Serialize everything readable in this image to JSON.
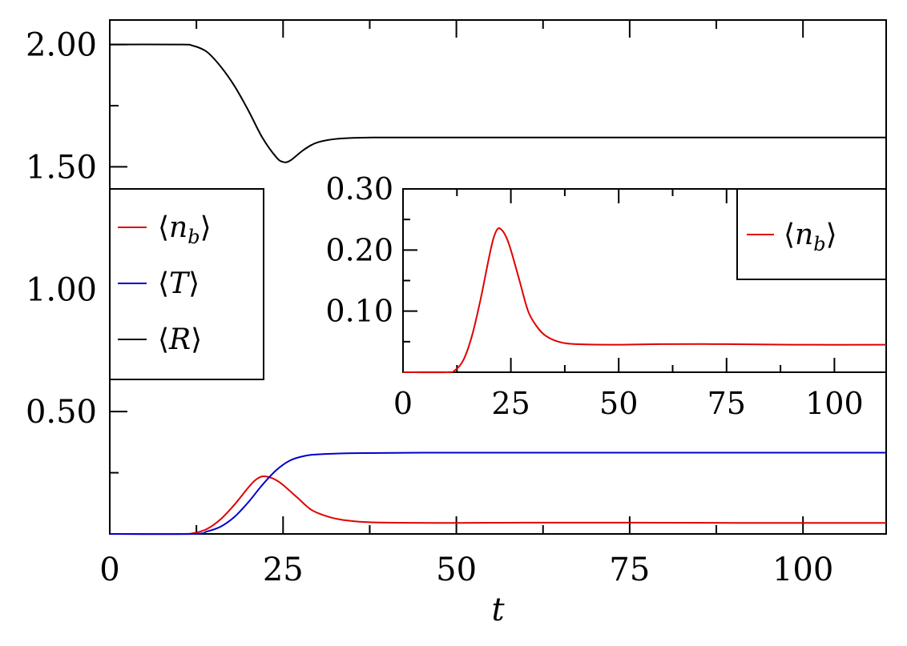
{
  "chart_data": [
    {
      "id": "main",
      "type": "line",
      "xlabel": "t",
      "ylabel": "",
      "xlim": [
        0,
        112
      ],
      "ylim": [
        0,
        2.1
      ],
      "xticks": [
        0,
        25,
        50,
        75,
        100
      ],
      "xtick_labels": [
        "0",
        "25",
        "50",
        "75",
        "100"
      ],
      "yticks": [
        0.5,
        1.0,
        1.5,
        2.0
      ],
      "ytick_labels": [
        "0.50",
        "1.00",
        "1.50",
        "2.00"
      ],
      "x_minor_step": 12.5,
      "y_minor_step": 0.25,
      "grid": false,
      "legend_position": "middle-left",
      "series": [
        {
          "legend": {
            "pre": "⟨",
            "var": "n",
            "sub": "b",
            "post": "⟩"
          },
          "color": "#e00000",
          "points": [
            [
              0,
              0
            ],
            [
              10,
              0
            ],
            [
              12,
              0.003
            ],
            [
              14,
              0.02
            ],
            [
              16,
              0.06
            ],
            [
              18,
              0.12
            ],
            [
              20,
              0.19
            ],
            [
              21,
              0.22
            ],
            [
              22,
              0.235
            ],
            [
              23,
              0.232
            ],
            [
              24,
              0.22
            ],
            [
              25,
              0.2
            ],
            [
              27,
              0.15
            ],
            [
              29,
              0.1
            ],
            [
              31,
              0.075
            ],
            [
              33,
              0.06
            ],
            [
              36,
              0.05
            ],
            [
              40,
              0.046
            ],
            [
              50,
              0.045
            ],
            [
              60,
              0.046
            ],
            [
              75,
              0.046
            ],
            [
              90,
              0.045
            ],
            [
              112,
              0.045
            ]
          ]
        },
        {
          "legend": {
            "pre": "⟨",
            "var": "T",
            "sub": "",
            "post": "⟩"
          },
          "color": "#0000cc",
          "points": [
            [
              0,
              0
            ],
            [
              12,
              0
            ],
            [
              14,
              0.01
            ],
            [
              16,
              0.03
            ],
            [
              18,
              0.07
            ],
            [
              20,
              0.13
            ],
            [
              22,
              0.2
            ],
            [
              24,
              0.26
            ],
            [
              26,
              0.3
            ],
            [
              28,
              0.318
            ],
            [
              30,
              0.325
            ],
            [
              35,
              0.33
            ],
            [
              45,
              0.332
            ],
            [
              60,
              0.332
            ],
            [
              80,
              0.332
            ],
            [
              112,
              0.332
            ]
          ]
        },
        {
          "legend": {
            "pre": "⟨",
            "var": "R",
            "sub": "",
            "post": "⟩"
          },
          "color": "#000000",
          "points": [
            [
              0,
              2.0
            ],
            [
              10,
              2.0
            ],
            [
              12,
              1.995
            ],
            [
              14,
              1.97
            ],
            [
              16,
              1.91
            ],
            [
              18,
              1.83
            ],
            [
              20,
              1.73
            ],
            [
              22,
              1.62
            ],
            [
              24,
              1.54
            ],
            [
              25,
              1.52
            ],
            [
              26,
              1.525
            ],
            [
              28,
              1.57
            ],
            [
              30,
              1.6
            ],
            [
              33,
              1.615
            ],
            [
              38,
              1.62
            ],
            [
              50,
              1.62
            ],
            [
              75,
              1.62
            ],
            [
              112,
              1.62
            ]
          ]
        }
      ]
    },
    {
      "id": "inset",
      "type": "line",
      "xlabel": "",
      "ylabel": "",
      "xlim": [
        0,
        112
      ],
      "ylim": [
        0,
        0.3
      ],
      "xticks": [
        0,
        25,
        50,
        75,
        100
      ],
      "xtick_labels": [
        "0",
        "25",
        "50",
        "75",
        "100"
      ],
      "yticks": [
        0.1,
        0.2,
        0.3
      ],
      "ytick_labels": [
        "0.10",
        "0.20",
        "0.30"
      ],
      "x_minor_step": 12.5,
      "y_minor_step": 0.05,
      "grid": false,
      "legend_position": "top-right",
      "series": [
        {
          "legend": {
            "pre": "⟨",
            "var": "n",
            "sub": "b",
            "post": "⟩"
          },
          "color": "#e00000",
          "points": [
            [
              0,
              0
            ],
            [
              10,
              0
            ],
            [
              12,
              0.003
            ],
            [
              14,
              0.02
            ],
            [
              16,
              0.06
            ],
            [
              18,
              0.12
            ],
            [
              20,
              0.19
            ],
            [
              21,
              0.22
            ],
            [
              22,
              0.235
            ],
            [
              23,
              0.232
            ],
            [
              24,
              0.22
            ],
            [
              25,
              0.2
            ],
            [
              27,
              0.15
            ],
            [
              29,
              0.1
            ],
            [
              31,
              0.075
            ],
            [
              33,
              0.06
            ],
            [
              36,
              0.05
            ],
            [
              40,
              0.046
            ],
            [
              50,
              0.045
            ],
            [
              60,
              0.046
            ],
            [
              75,
              0.046
            ],
            [
              90,
              0.045
            ],
            [
              112,
              0.045
            ]
          ]
        }
      ]
    }
  ]
}
